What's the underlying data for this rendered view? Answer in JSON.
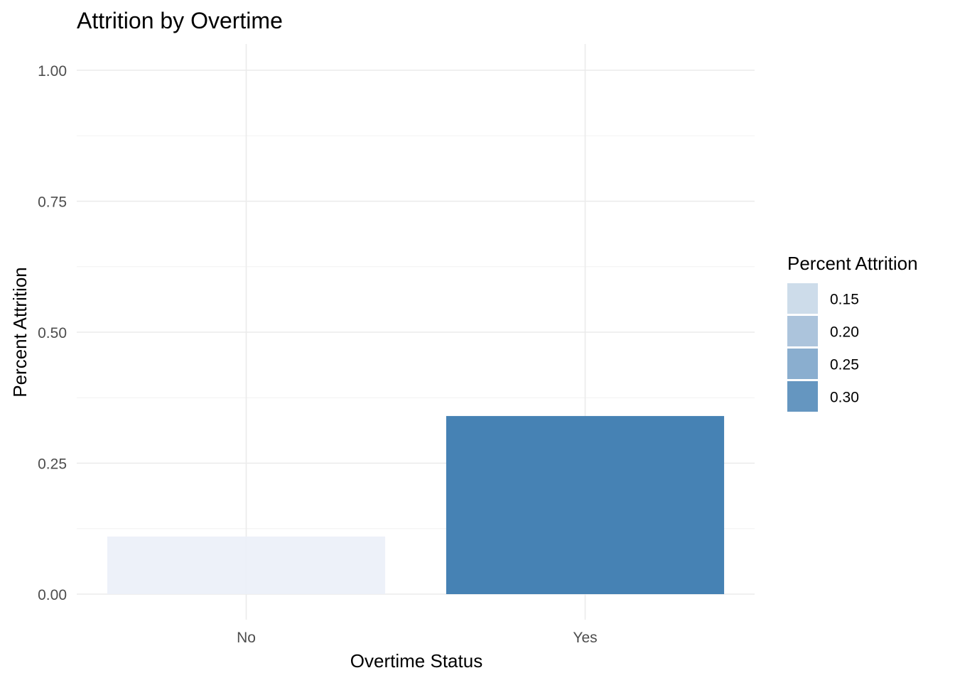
{
  "chart_data": {
    "type": "bar",
    "title": "Attrition by Overtime",
    "xlabel": "Overtime Status",
    "ylabel": "Percent Attrition",
    "categories": [
      "No",
      "Yes"
    ],
    "values": [
      0.11,
      0.34
    ],
    "ylim": [
      0,
      1.0
    ],
    "yticks": [
      0.0,
      0.25,
      0.5,
      0.75,
      1.0
    ],
    "ytick_labels": [
      "0.00",
      "0.25",
      "0.50",
      "0.75",
      "1.00"
    ],
    "grid": true,
    "legend": {
      "title": "Percent Attrition",
      "placement": "right",
      "entries": [
        {
          "label": "0.15",
          "color": "#cddcea"
        },
        {
          "label": "0.20",
          "color": "#acc4dc"
        },
        {
          "label": "0.25",
          "color": "#8aaecf"
        },
        {
          "label": "0.30",
          "color": "#6596c0"
        }
      ]
    },
    "fill_scale": {
      "low_color": "#ebf0f8",
      "high_color": "#4682b4"
    }
  }
}
